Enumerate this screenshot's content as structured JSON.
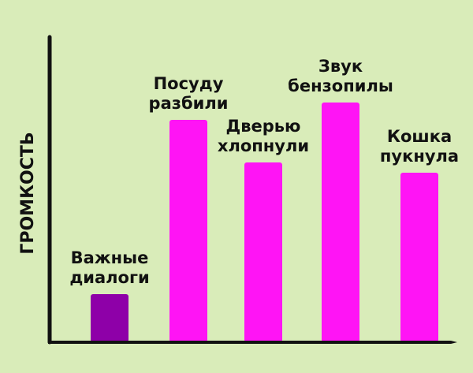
{
  "chart_data": {
    "type": "bar",
    "ylabel": "ГРОМКОСТЬ",
    "xlabel": "",
    "categories": [
      [
        "Важные",
        "диалоги"
      ],
      [
        "Посуду",
        "разбили"
      ],
      [
        "Дверью",
        "хлопнули"
      ],
      [
        "Звук",
        "бензопилы"
      ],
      [
        "Кошка",
        "пукнула"
      ]
    ],
    "values": [
      59,
      280,
      226,
      302,
      213
    ],
    "ylim": [
      0,
      385
    ],
    "grid": false,
    "axis_tick_labels": false,
    "colors": [
      "#8e00a8",
      "#ff14f5",
      "#ff14f5",
      "#ff14f5",
      "#ff14f5"
    ],
    "background": "#d9ecb9"
  }
}
